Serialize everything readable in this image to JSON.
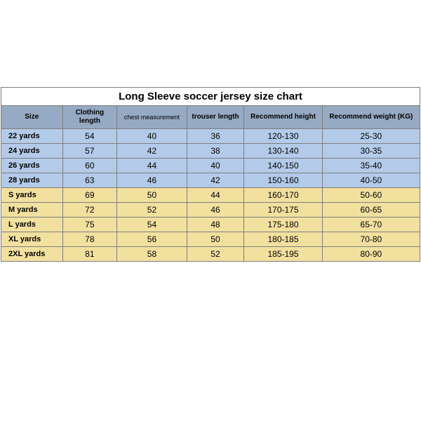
{
  "title": "Long Sleeve soccer jersey size chart",
  "columns": [
    "Size",
    "Clothing length",
    "chest measurement",
    "trouser length",
    "Recommend height",
    "Recommend weight (KG)"
  ],
  "colors": {
    "header_bg": "#96aac4",
    "blue_row": "#b3cbe9",
    "yellow_row": "#f2e09f",
    "border": "#7d7d7d",
    "background": "#ffffff",
    "text": "#000000"
  },
  "rows": [
    {
      "group": "blue",
      "cells": [
        "22 yards",
        "54",
        "40",
        "36",
        "120-130",
        "25-30"
      ]
    },
    {
      "group": "blue",
      "cells": [
        "24 yards",
        "57",
        "42",
        "38",
        "130-140",
        "30-35"
      ]
    },
    {
      "group": "blue",
      "cells": [
        "26 yards",
        "60",
        "44",
        "40",
        "140-150",
        "35-40"
      ]
    },
    {
      "group": "blue",
      "cells": [
        "28 yards",
        "63",
        "46",
        "42",
        "150-160",
        "40-50"
      ]
    },
    {
      "group": "yellow",
      "cells": [
        "S yards",
        "69",
        "50",
        "44",
        "160-170",
        "50-60"
      ]
    },
    {
      "group": "yellow",
      "cells": [
        "M yards",
        "72",
        "52",
        "46",
        "170-175",
        "60-65"
      ]
    },
    {
      "group": "yellow",
      "cells": [
        "L yards",
        "75",
        "54",
        "48",
        "175-180",
        "65-70"
      ]
    },
    {
      "group": "yellow",
      "cells": [
        "XL yards",
        "78",
        "56",
        "50",
        "180-185",
        "70-80"
      ]
    },
    {
      "group": "yellow",
      "cells": [
        "2XL yards",
        "81",
        "58",
        "52",
        "185-195",
        "80-90"
      ]
    }
  ]
}
